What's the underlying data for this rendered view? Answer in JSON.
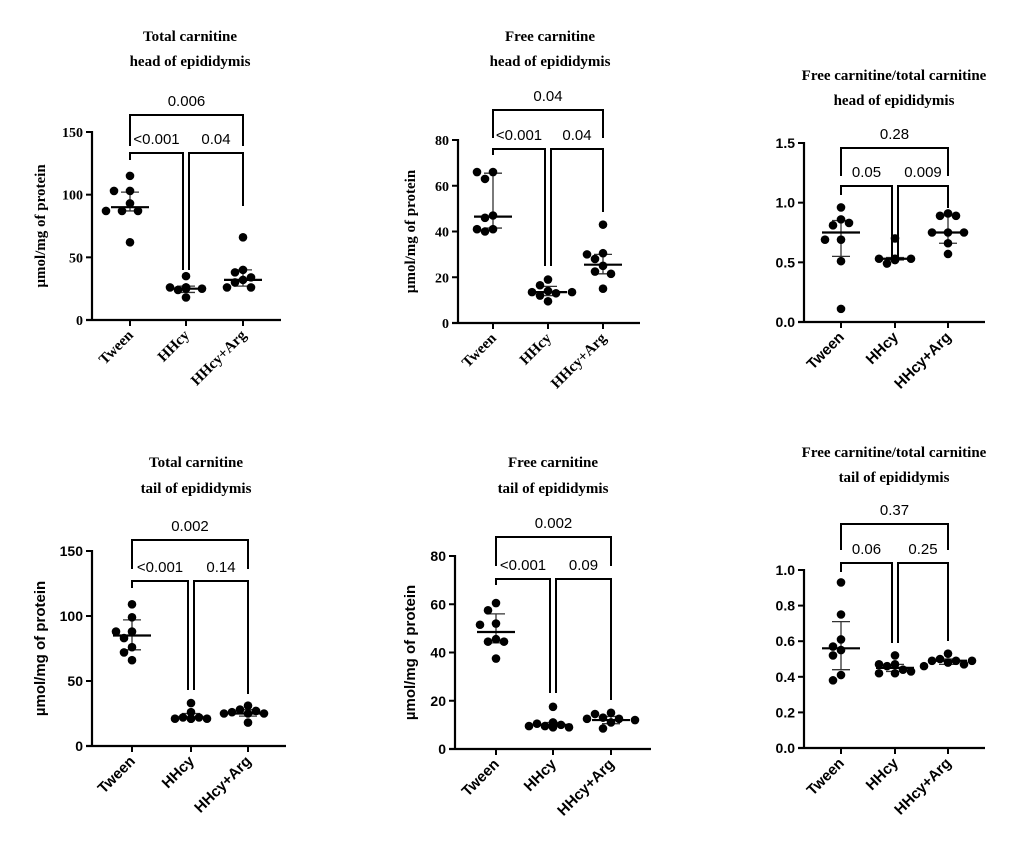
{
  "chart_data": [
    {
      "type": "scatter",
      "panel": "top-left",
      "title": [
        "Total carnitine",
        "head of epididymis"
      ],
      "ylabel": "µmol/mg of protein",
      "xlabel": "",
      "categories": [
        "Tween",
        "HHcy",
        "HHcy+Arg"
      ],
      "ylim": [
        0,
        150
      ],
      "yticks": [
        0,
        50,
        100,
        150
      ],
      "tick_format": "int",
      "tick_style": "serif",
      "grid": false,
      "legend": "none",
      "groups": [
        {
          "name": "Tween",
          "points": [
            115,
            103,
            103,
            93,
            87,
            87,
            87,
            62
          ],
          "center": 90,
          "err_low": 87,
          "err_high": 102
        },
        {
          "name": "HHcy",
          "points": [
            35,
            26,
            26,
            25,
            24,
            25,
            26,
            18
          ],
          "center": 25,
          "err_low": 22,
          "err_high": 27
        },
        {
          "name": "HHcy+Arg",
          "points": [
            66,
            40,
            38,
            34,
            32,
            30,
            26,
            26
          ],
          "center": 32,
          "err_low": 27,
          "err_high": 40
        }
      ],
      "comparisons": [
        {
          "from": 0,
          "to": 2,
          "label": "0.006"
        },
        {
          "from": 0,
          "to": 1,
          "label": "<0.001"
        },
        {
          "from": 1,
          "to": 2,
          "label": "0.04"
        }
      ]
    },
    {
      "type": "scatter",
      "panel": "top-middle",
      "title": [
        "Free carnitine",
        "head of epididymis"
      ],
      "ylabel": "µmol/mg of protein",
      "xlabel": "",
      "categories": [
        "Tween",
        "HHcy",
        "HHcy+Arg"
      ],
      "ylim": [
        0,
        80
      ],
      "yticks": [
        0,
        20,
        40,
        60,
        80
      ],
      "tick_format": "int",
      "tick_style": "serif",
      "grid": false,
      "legend": "none",
      "groups": [
        {
          "name": "Tween",
          "points": [
            66,
            66,
            63,
            47,
            46,
            41,
            41,
            40
          ],
          "center": 46.5,
          "err_low": 41.5,
          "err_high": 65.5
        },
        {
          "name": "HHcy",
          "points": [
            19,
            16.5,
            14,
            13.5,
            13,
            13.5,
            12,
            9.5
          ],
          "center": 13.5,
          "err_low": 12,
          "err_high": 16
        },
        {
          "name": "HHcy+Arg",
          "points": [
            43,
            30.5,
            30,
            28,
            25,
            22.5,
            21.5,
            15
          ],
          "center": 25.5,
          "err_low": 21.5,
          "err_high": 30
        }
      ],
      "comparisons": [
        {
          "from": 0,
          "to": 2,
          "label": "0.04"
        },
        {
          "from": 0,
          "to": 1,
          "label": "<0.001"
        },
        {
          "from": 1,
          "to": 2,
          "label": "0.04"
        }
      ]
    },
    {
      "type": "scatter",
      "panel": "top-right",
      "title": [
        "Free carnitine/total carnitine",
        "head of epididymis"
      ],
      "ylabel": "",
      "xlabel": "",
      "categories": [
        "Tween",
        "HHcy",
        "HHcy+Arg"
      ],
      "ylim": [
        0,
        1.5
      ],
      "yticks": [
        0,
        0.5,
        1.0,
        1.5
      ],
      "tick_format": "1dp",
      "tick_style": "sans",
      "grid": false,
      "legend": "none",
      "groups": [
        {
          "name": "Tween",
          "points": [
            0.96,
            0.86,
            0.81,
            0.83,
            0.69,
            0.69,
            0.51,
            0.11
          ],
          "center": 0.75,
          "err_low": 0.55,
          "err_high": 0.85
        },
        {
          "name": "HHcy",
          "points": [
            0.7,
            0.53,
            0.53,
            0.53,
            0.52,
            0.53,
            0.52,
            0.49
          ],
          "center": 0.53,
          "err_low": 0.52,
          "err_high": 0.54
        },
        {
          "name": "HHcy+Arg",
          "points": [
            0.91,
            0.89,
            0.89,
            0.75,
            0.75,
            0.75,
            0.66,
            0.57
          ],
          "center": 0.75,
          "err_low": 0.66,
          "err_high": 0.89
        }
      ],
      "comparisons": [
        {
          "from": 0,
          "to": 2,
          "label": "0.28"
        },
        {
          "from": 0,
          "to": 1,
          "label": "0.05"
        },
        {
          "from": 1,
          "to": 2,
          "label": "0.009"
        }
      ]
    },
    {
      "type": "scatter",
      "panel": "bottom-left",
      "title": [
        "Total carnitine",
        "tail of epididymis"
      ],
      "ylabel": "µmol/mg of protein",
      "xlabel": "",
      "categories": [
        "Tween",
        "HHcy",
        "HHcy+Arg"
      ],
      "ylim": [
        0,
        150
      ],
      "yticks": [
        0,
        50,
        100,
        150
      ],
      "tick_format": "int",
      "tick_style": "sans",
      "grid": false,
      "legend": "none",
      "groups": [
        {
          "name": "Tween",
          "points": [
            109,
            99,
            88,
            88,
            83,
            76,
            72,
            66
          ],
          "center": 85,
          "err_low": 74,
          "err_high": 97
        },
        {
          "name": "HHcy",
          "points": [
            33,
            26,
            22,
            22,
            21,
            21,
            21,
            21
          ],
          "center": 22,
          "err_low": 21,
          "err_high": 25
        },
        {
          "name": "HHcy+Arg",
          "points": [
            31,
            28,
            27,
            26,
            25,
            25,
            25,
            18
          ],
          "center": 25,
          "err_low": 23,
          "err_high": 28
        }
      ],
      "comparisons": [
        {
          "from": 0,
          "to": 2,
          "label": "0.002"
        },
        {
          "from": 0,
          "to": 1,
          "label": "<0.001"
        },
        {
          "from": 1,
          "to": 2,
          "label": "0.14"
        }
      ]
    },
    {
      "type": "scatter",
      "panel": "bottom-middle",
      "title": [
        "Free carnitine",
        "tail of epididymis"
      ],
      "ylabel": "µmol/mg of protein",
      "xlabel": "",
      "categories": [
        "Tween",
        "HHcy",
        "HHcy+Arg"
      ],
      "ylim": [
        0,
        80
      ],
      "yticks": [
        0,
        20,
        40,
        60,
        80
      ],
      "tick_format": "int",
      "tick_style": "sans",
      "grid": false,
      "legend": "none",
      "groups": [
        {
          "name": "Tween",
          "points": [
            60.5,
            57.5,
            52,
            51.5,
            45.5,
            44.5,
            44.5,
            37.5
          ],
          "center": 48.5,
          "err_low": 44,
          "err_high": 56
        },
        {
          "name": "HHcy",
          "points": [
            17.5,
            11,
            10.5,
            10,
            9.5,
            9.5,
            9,
            9
          ],
          "center": 10,
          "err_low": 9.5,
          "err_high": 11
        },
        {
          "name": "HHcy+Arg",
          "points": [
            15,
            14.5,
            13,
            12.5,
            12.5,
            12,
            11,
            8.5
          ],
          "center": 12,
          "err_low": 10.5,
          "err_high": 13.5
        }
      ],
      "comparisons": [
        {
          "from": 0,
          "to": 2,
          "label": "0.002"
        },
        {
          "from": 0,
          "to": 1,
          "label": "<0.001"
        },
        {
          "from": 1,
          "to": 2,
          "label": "0.09"
        }
      ]
    },
    {
      "type": "scatter",
      "panel": "bottom-right",
      "title": [
        "Free carnitine/total carnitine",
        "tail of epididymis"
      ],
      "ylabel": "",
      "xlabel": "",
      "categories": [
        "Tween",
        "HHcy",
        "HHcy+Arg"
      ],
      "ylim": [
        0,
        1.0
      ],
      "yticks": [
        0,
        0.2,
        0.4,
        0.6,
        0.8,
        1.0
      ],
      "tick_format": "1dp",
      "tick_style": "sans",
      "grid": false,
      "legend": "none",
      "groups": [
        {
          "name": "Tween",
          "points": [
            0.93,
            0.75,
            0.61,
            0.57,
            0.55,
            0.52,
            0.41,
            0.38
          ],
          "center": 0.56,
          "err_low": 0.44,
          "err_high": 0.71
        },
        {
          "name": "HHcy",
          "points": [
            0.52,
            0.47,
            0.47,
            0.46,
            0.44,
            0.43,
            0.42,
            0.42
          ],
          "center": 0.45,
          "err_low": 0.43,
          "err_high": 0.47
        },
        {
          "name": "HHcy+Arg",
          "points": [
            0.53,
            0.5,
            0.49,
            0.49,
            0.49,
            0.48,
            0.47,
            0.46
          ],
          "center": 0.49,
          "err_low": 0.47,
          "err_high": 0.5
        }
      ],
      "comparisons": [
        {
          "from": 0,
          "to": 2,
          "label": "0.37"
        },
        {
          "from": 0,
          "to": 1,
          "label": "0.06"
        },
        {
          "from": 1,
          "to": 2,
          "label": "0.25"
        }
      ]
    }
  ],
  "colors": {
    "ink": "#000000",
    "background": "#ffffff"
  }
}
